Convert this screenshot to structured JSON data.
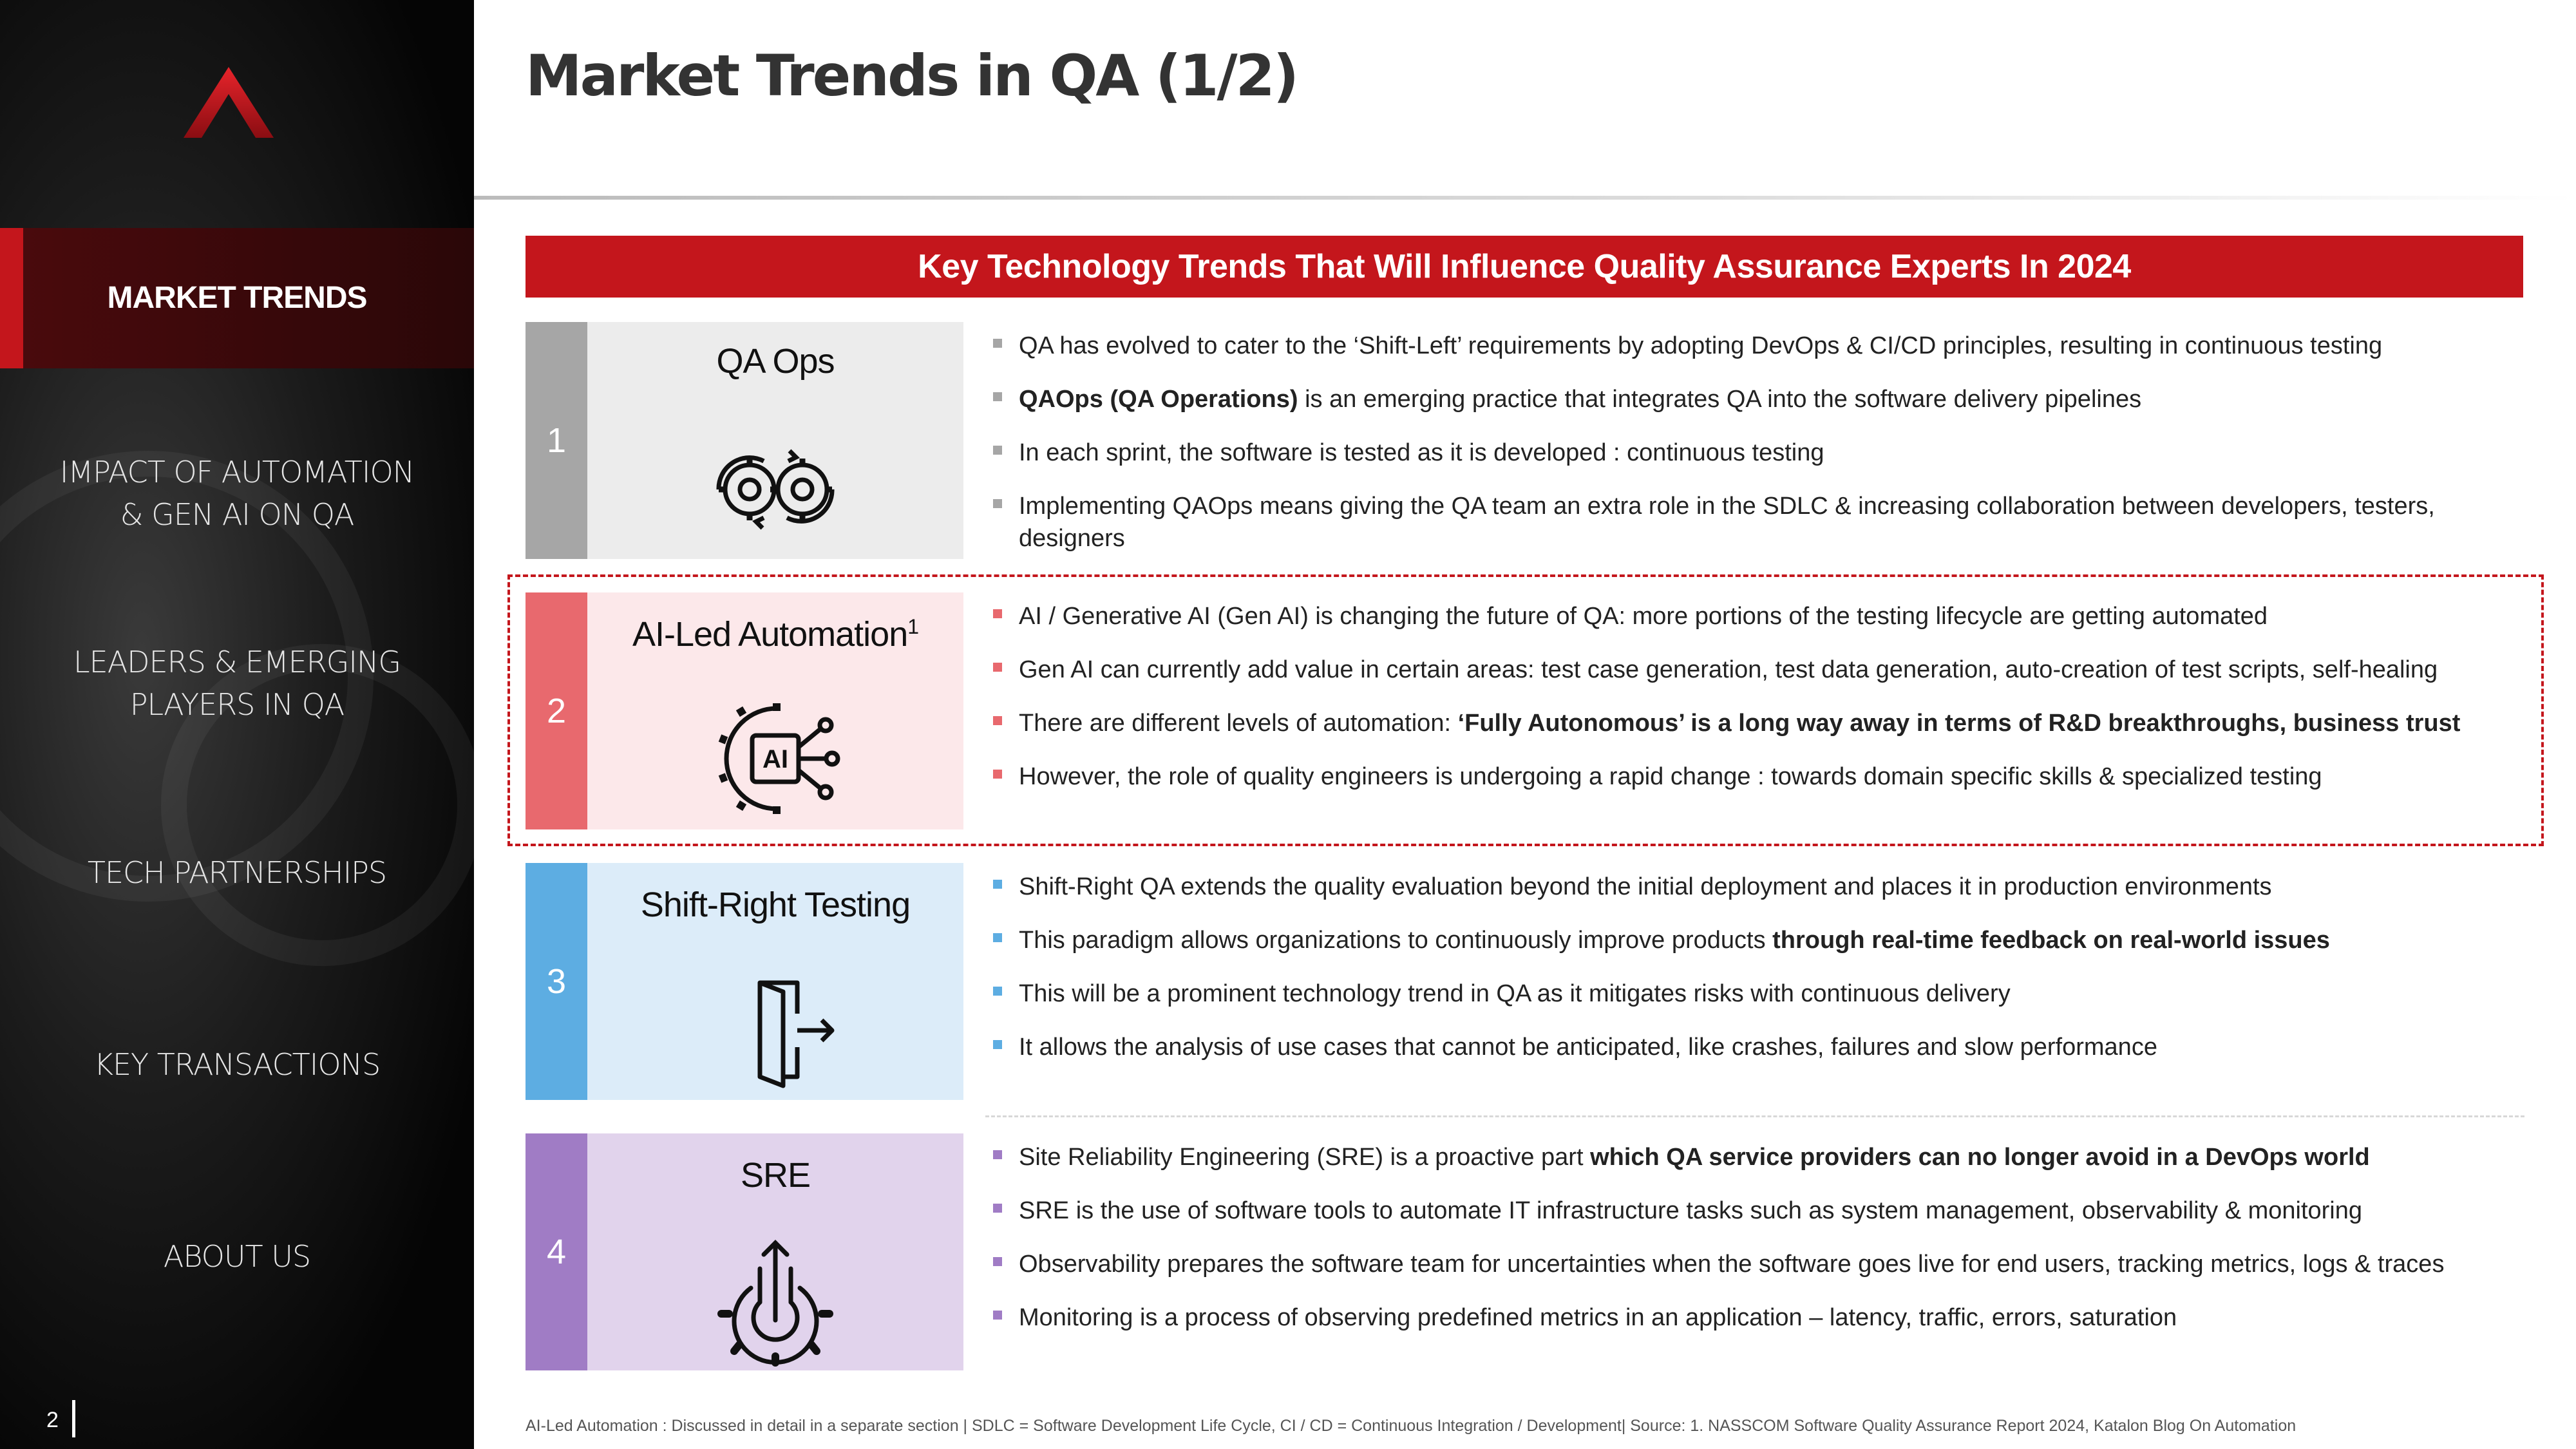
{
  "sidebar": {
    "items": [
      {
        "label": "MARKET TRENDS",
        "active": true
      },
      {
        "label": "IMPACT OF AUTOMATION & GEN AI ON QA"
      },
      {
        "label": "LEADERS & EMERGING PLAYERS IN QA"
      },
      {
        "label": "TECH PARTNERSHIPS"
      },
      {
        "label": "KEY TRANSACTIONS"
      },
      {
        "label": "ABOUT US"
      }
    ],
    "page_number": "2"
  },
  "header": {
    "title": "Market Trends in QA (1/2)"
  },
  "banner": "Key Technology Trends That Will Influence Quality Assurance Experts In 2024",
  "trends": [
    {
      "number": "1",
      "title": "QA Ops",
      "title_sup": "",
      "icon": "gears-cycle-icon",
      "colors": {
        "num": "#a6a6a6",
        "panel": "#ececec",
        "bullet": "#a6a6a6"
      },
      "bullets": [
        {
          "pre": "QA has evolved to cater to the ‘Shift-Left’ requirements by adopting DevOps & CI/CD principles, resulting in continuous testing",
          "bold": "",
          "post": ""
        },
        {
          "pre": "",
          "bold": "QAOps (QA Operations)",
          "post": " is an emerging practice that integrates QA into the software delivery pipelines"
        },
        {
          "pre": "In each sprint, the software is tested as it is developed : continuous testing",
          "bold": "",
          "post": ""
        },
        {
          "pre": "Implementing QAOps means giving the QA team an extra role in the SDLC & increasing collaboration between developers, testers, designers",
          "bold": "",
          "post": ""
        }
      ]
    },
    {
      "number": "2",
      "title": "AI-Led Automation",
      "title_sup": "1",
      "icon": "ai-chip-gear-icon",
      "colors": {
        "num": "#e8696e",
        "panel": "#fce8ea",
        "bullet": "#e8696e"
      },
      "bullets": [
        {
          "pre": "AI / Generative AI (Gen AI) is changing the future of QA: more portions of the testing lifecycle are getting automated",
          "bold": "",
          "post": ""
        },
        {
          "pre": "Gen AI can currently add value in certain areas: test case generation, test data generation, auto-creation of test scripts, self-healing",
          "bold": "",
          "post": ""
        },
        {
          "pre": "There are different levels of automation: ",
          "bold": "‘Fully Autonomous’ is a long way away in terms of R&D breakthroughs, business trust",
          "post": ""
        },
        {
          "pre": "However, the role of quality engineers is undergoing a rapid change : towards domain specific skills & specialized testing",
          "bold": "",
          "post": ""
        }
      ]
    },
    {
      "number": "3",
      "title": "Shift-Right Testing",
      "title_sup": "",
      "icon": "door-exit-icon",
      "colors": {
        "num": "#5dade2",
        "panel": "#dcecf9",
        "bullet": "#5dade2"
      },
      "bullets": [
        {
          "pre": "Shift-Right QA extends the quality evaluation beyond the initial deployment and places it in production environments",
          "bold": "",
          "post": ""
        },
        {
          "pre": "This paradigm allows organizations to continuously improve products ",
          "bold": "through real-time feedback on real-world issues",
          "post": ""
        },
        {
          "pre": "This will be a prominent technology trend in QA as it mitigates risks with continuous delivery",
          "bold": "",
          "post": ""
        },
        {
          "pre": "It allows the analysis of use cases that cannot be anticipated, like crashes, failures and slow performance",
          "bold": "",
          "post": ""
        }
      ]
    },
    {
      "number": "4",
      "title": "SRE",
      "title_sup": "",
      "icon": "gear-upload-icon",
      "colors": {
        "num": "#a07cc5",
        "panel": "#e1d3ec",
        "bullet": "#a07cc5"
      },
      "bullets": [
        {
          "pre": "Site Reliability Engineering (SRE) is a proactive part ",
          "bold": "which QA service providers can no longer avoid in a DevOps world",
          "post": ""
        },
        {
          "pre": "SRE is the use of software tools to automate IT infrastructure tasks such as system management, observability & monitoring",
          "bold": "",
          "post": ""
        },
        {
          "pre": "Observability prepares the software team for uncertainties when the software goes live for end users, tracking metrics, logs & traces",
          "bold": "",
          "post": ""
        },
        {
          "pre": "Monitoring is a process of observing predefined metrics in an application – latency, traffic, errors, saturation",
          "bold": "",
          "post": ""
        }
      ]
    }
  ],
  "footnote": "AI-Led Automation : Discussed in detail in a separate section | SDLC = Software Development Life Cycle, CI / CD = Continuous Integration / Development| Source: 1. NASSCOM Software Quality Assurance Report 2024, Katalon Blog On Automation",
  "colors": {
    "accent": "#c4161c"
  }
}
